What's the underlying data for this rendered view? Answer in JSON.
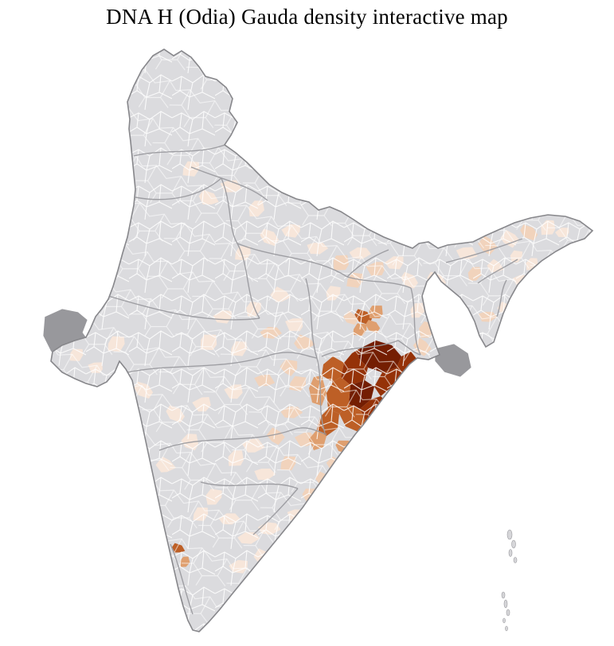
{
  "page": {
    "title": "DNA H (Odia) Gauda density interactive map"
  },
  "map": {
    "title": "DNA H (Odia) Gauda density interactive map",
    "focus_region": "Odisha district cluster",
    "palette": {
      "base": "#dbdbde",
      "density1": "#f7e6da",
      "density2": "#f1d3bc",
      "density3": "#df9f6f",
      "density4": "#bd5f26",
      "density5": "#953208",
      "density6": "#741e02",
      "neighbor": "#98989c",
      "district_line": "#ffffff",
      "state_line": "#9b9b9f",
      "outline": "#87878b"
    }
  }
}
